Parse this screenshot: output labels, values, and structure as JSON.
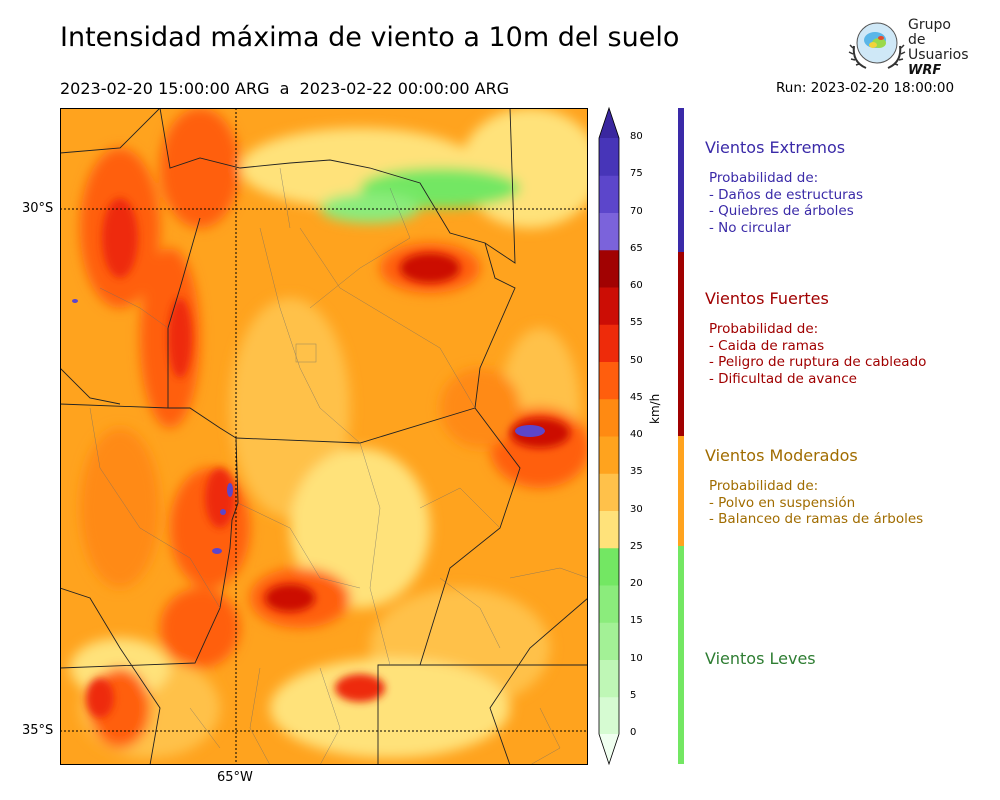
{
  "header": {
    "title": "Intensidad máxima de viento a 10m del suelo",
    "period": "2023-02-20 15:00:00 ARG  a  2023-02-22 00:00:00 ARG",
    "run": "Run: 2023-02-20 18:00:00"
  },
  "logo": {
    "line1": "Grupo de",
    "line2": "Usuarios",
    "line3": "WRF"
  },
  "map": {
    "lat_labels": [
      "30°S",
      "35°S"
    ],
    "lon_labels": [
      "65°W"
    ]
  },
  "colorbar": {
    "unit": "km/h",
    "ticks": [
      "0",
      "5",
      "10",
      "15",
      "20",
      "25",
      "30",
      "35",
      "40",
      "45",
      "50",
      "55",
      "60",
      "65",
      "70",
      "75",
      "80"
    ],
    "colors": [
      "#f0fff0",
      "#d6fbd2",
      "#bff7b6",
      "#a3f196",
      "#8bec7c",
      "#73e763",
      "#ffe27a",
      "#ffc14a",
      "#ffa31e",
      "#ff8a12",
      "#ff5e0d",
      "#ee2b0a",
      "#cc0d05",
      "#a10202",
      "#7b63db",
      "#5c46cb",
      "#4735b8",
      "#3a279f"
    ]
  },
  "categories": [
    {
      "title": "Vientos Extremos",
      "color": "#3a2aa8",
      "lines": [
        "Probabilidad de:",
        "- Daños de estructuras",
        "- Quiebres de árboles",
        "- No circular"
      ]
    },
    {
      "title": "Vientos Fuertes",
      "color": "#a00000",
      "lines": [
        "Probabilidad de:",
        "- Caida de ramas",
        "- Peligro de ruptura de cableado",
        "- Dificultad de avance"
      ]
    },
    {
      "title": "Vientos Moderados",
      "color": "#a06c00",
      "lines": [
        "Probabilidad de:",
        "- Polvo en suspensión",
        "- Balanceo de ramas de árboles"
      ]
    },
    {
      "title": "Vientos Leves",
      "color": "#2e7d32",
      "lines": []
    }
  ]
}
